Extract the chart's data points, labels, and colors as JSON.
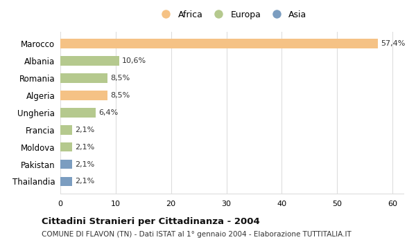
{
  "categories": [
    "Marocco",
    "Albania",
    "Romania",
    "Algeria",
    "Ungheria",
    "Francia",
    "Moldova",
    "Pakistan",
    "Thailandia"
  ],
  "values": [
    57.4,
    10.6,
    8.5,
    8.5,
    6.4,
    2.1,
    2.1,
    2.1,
    2.1
  ],
  "labels": [
    "57,4%",
    "10,6%",
    "8,5%",
    "8,5%",
    "6,4%",
    "2,1%",
    "2,1%",
    "2,1%",
    "2,1%"
  ],
  "continent": [
    "Africa",
    "Europa",
    "Europa",
    "Africa",
    "Europa",
    "Europa",
    "Europa",
    "Asia",
    "Asia"
  ],
  "colors": {
    "Africa": "#F5C285",
    "Europa": "#B5C98E",
    "Asia": "#7B9DC0"
  },
  "legend_labels": [
    "Africa",
    "Europa",
    "Asia"
  ],
  "legend_colors": [
    "#F5C285",
    "#B5C98E",
    "#7B9DC0"
  ],
  "xlim": [
    0,
    62
  ],
  "xticks": [
    0,
    10,
    20,
    30,
    40,
    50,
    60
  ],
  "title_bold": "Cittadini Stranieri per Cittadinanza - 2004",
  "subtitle": "COMUNE DI FLAVON (TN) - Dati ISTAT al 1° gennaio 2004 - Elaborazione TUTTITALIA.IT",
  "bg_color": "#ffffff",
  "grid_color": "#dddddd"
}
